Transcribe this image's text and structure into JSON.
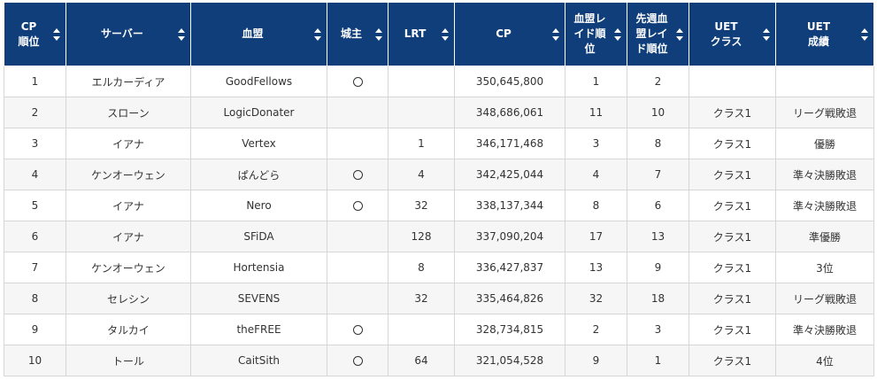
{
  "table": {
    "headers": [
      {
        "key": "rank",
        "label": "CP順位"
      },
      {
        "key": "server",
        "label": "サーバー"
      },
      {
        "key": "guild",
        "label": "血盟"
      },
      {
        "key": "castle_lord",
        "label": "城主"
      },
      {
        "key": "lrt",
        "label": "LRT"
      },
      {
        "key": "cp",
        "label": "CP"
      },
      {
        "key": "guild_raid_rank",
        "label": "血盟レイド順位"
      },
      {
        "key": "last_week_raid_rank",
        "label": "先週血盟レイド順位"
      },
      {
        "key": "uet_class",
        "label": "UETクラス"
      },
      {
        "key": "uet_result",
        "label": "UET成績"
      }
    ],
    "lord_symbol": "○",
    "rows": [
      {
        "rank": "1",
        "server": "エルカーディア",
        "guild": "GoodFellows",
        "castle_lord": true,
        "lrt": "",
        "cp": "350,645,800",
        "guild_raid_rank": "1",
        "last_week_raid_rank": "2",
        "uet_class": "",
        "uet_result": ""
      },
      {
        "rank": "2",
        "server": "スローン",
        "guild": "LogicDonater",
        "castle_lord": false,
        "lrt": "",
        "cp": "348,686,061",
        "guild_raid_rank": "11",
        "last_week_raid_rank": "10",
        "uet_class": "クラス1",
        "uet_result": "リーグ戦敗退"
      },
      {
        "rank": "3",
        "server": "イアナ",
        "guild": "Vertex",
        "castle_lord": false,
        "lrt": "1",
        "cp": "346,171,468",
        "guild_raid_rank": "3",
        "last_week_raid_rank": "8",
        "uet_class": "クラス1",
        "uet_result": "優勝"
      },
      {
        "rank": "4",
        "server": "ケンオーウェン",
        "guild": "ぱんどら",
        "castle_lord": true,
        "lrt": "4",
        "cp": "342,425,044",
        "guild_raid_rank": "4",
        "last_week_raid_rank": "7",
        "uet_class": "クラス1",
        "uet_result": "準々決勝敗退"
      },
      {
        "rank": "5",
        "server": "イアナ",
        "guild": "Nero",
        "castle_lord": true,
        "lrt": "32",
        "cp": "338,137,344",
        "guild_raid_rank": "8",
        "last_week_raid_rank": "6",
        "uet_class": "クラス1",
        "uet_result": "準々決勝敗退"
      },
      {
        "rank": "6",
        "server": "イアナ",
        "guild": "SFiDA",
        "castle_lord": false,
        "lrt": "128",
        "cp": "337,090,204",
        "guild_raid_rank": "17",
        "last_week_raid_rank": "13",
        "uet_class": "クラス1",
        "uet_result": "準優勝"
      },
      {
        "rank": "7",
        "server": "ケンオーウェン",
        "guild": "Hortensia",
        "castle_lord": false,
        "lrt": "8",
        "cp": "336,427,837",
        "guild_raid_rank": "13",
        "last_week_raid_rank": "9",
        "uet_class": "クラス1",
        "uet_result": "3位"
      },
      {
        "rank": "8",
        "server": "セレシン",
        "guild": "SEVENS",
        "castle_lord": false,
        "lrt": "32",
        "cp": "335,464,826",
        "guild_raid_rank": "32",
        "last_week_raid_rank": "18",
        "uet_class": "クラス1",
        "uet_result": "リーグ戦敗退"
      },
      {
        "rank": "9",
        "server": "タルカイ",
        "guild": "theFREE",
        "castle_lord": true,
        "lrt": "",
        "cp": "328,734,815",
        "guild_raid_rank": "2",
        "last_week_raid_rank": "3",
        "uet_class": "クラス1",
        "uet_result": "準々決勝敗退"
      },
      {
        "rank": "10",
        "server": "トール",
        "guild": "CaitSith",
        "castle_lord": true,
        "lrt": "64",
        "cp": "321,054,528",
        "guild_raid_rank": "9",
        "last_week_raid_rank": "1",
        "uet_class": "クラス1",
        "uet_result": "4位"
      }
    ]
  }
}
